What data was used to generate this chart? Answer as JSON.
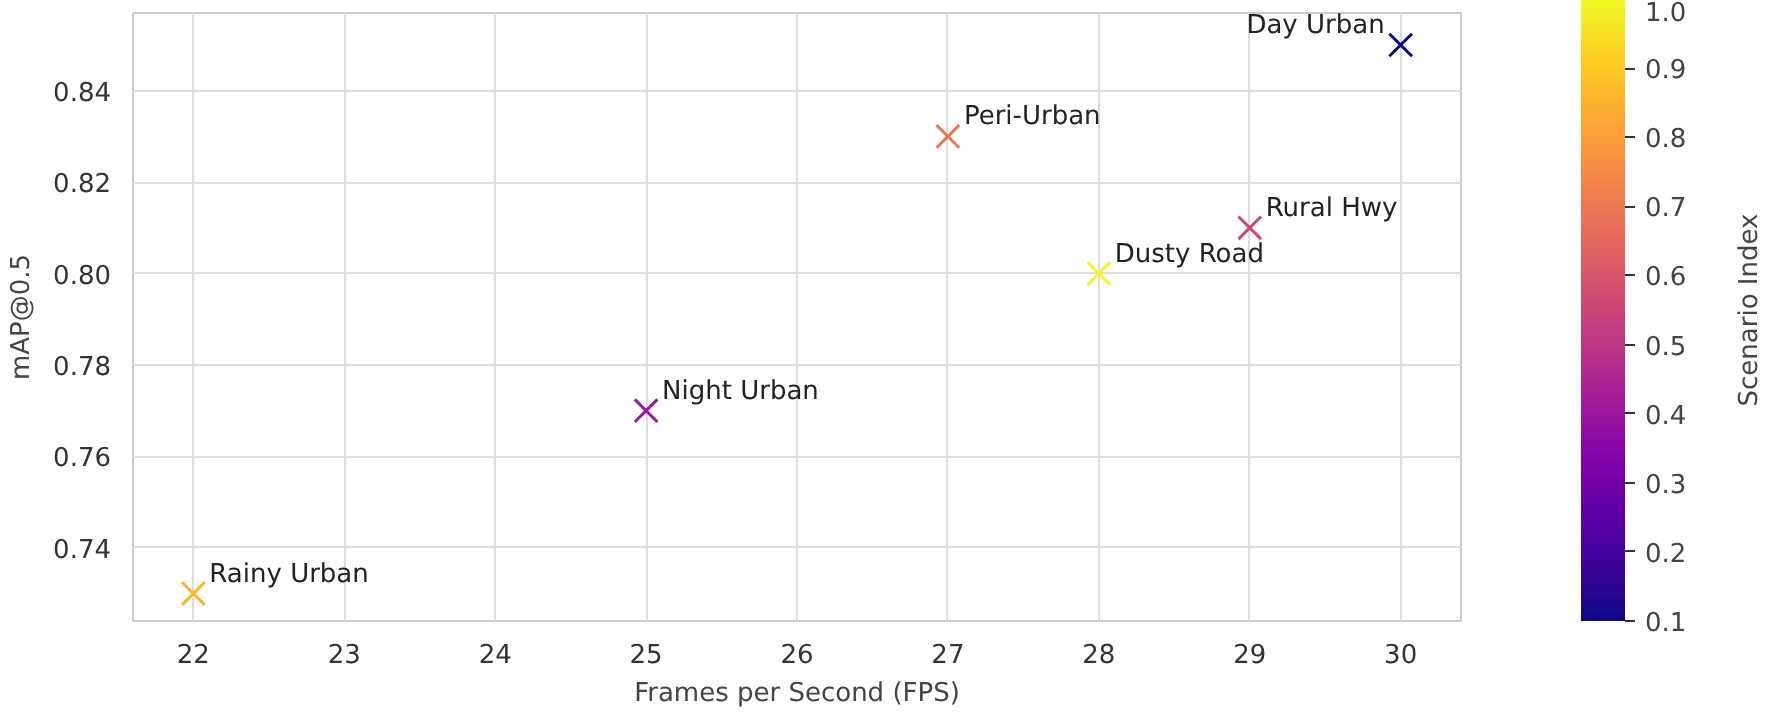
{
  "chart_data": {
    "type": "scatter",
    "xlabel": "Frames per Second (FPS)",
    "ylabel": "mAP@0.5",
    "clabel": "Scenario Index",
    "x": [
      30,
      27,
      29,
      28,
      25,
      22
    ],
    "values": [
      0.85,
      0.83,
      0.81,
      0.8,
      0.77,
      0.73
    ],
    "cvalues": [
      0.1,
      0.7,
      0.55,
      1.0,
      0.4,
      0.85
    ],
    "clim": [
      0.1,
      1.0
    ],
    "cticks": [
      0.1,
      0.2,
      0.3,
      0.4,
      0.5,
      0.6,
      0.7,
      0.8,
      0.9,
      {
        "value": 1.0,
        "label": "1.0"
      }
    ],
    "xlim": [
      21.6,
      30.4
    ],
    "ylim": [
      0.724,
      0.857
    ],
    "xticks": [
      22,
      23,
      24,
      25,
      26,
      27,
      28,
      29,
      30
    ],
    "yticks": [
      {
        "value": 0.74,
        "label": "0.74"
      },
      {
        "value": 0.76,
        "label": "0.76"
      },
      {
        "value": 0.78,
        "label": "0.78"
      },
      {
        "value": 0.8,
        "label": "0.80"
      },
      {
        "value": 0.82,
        "label": "0.82"
      },
      {
        "value": 0.84,
        "label": "0.84"
      }
    ],
    "annotations": [
      {
        "text": "Day Urban",
        "x": 30,
        "y": 0.85
      },
      {
        "text": "Peri-Urban",
        "x": 27,
        "y": 0.83
      },
      {
        "text": "Rural Hwy",
        "x": 29,
        "y": 0.81
      },
      {
        "text": "Dusty Road",
        "x": 28,
        "y": 0.8
      },
      {
        "text": "Night Urban",
        "x": 25,
        "y": 0.77
      },
      {
        "text": "Rainy Urban",
        "x": 22,
        "y": 0.73
      }
    ],
    "grid": true,
    "marker": "cross"
  }
}
